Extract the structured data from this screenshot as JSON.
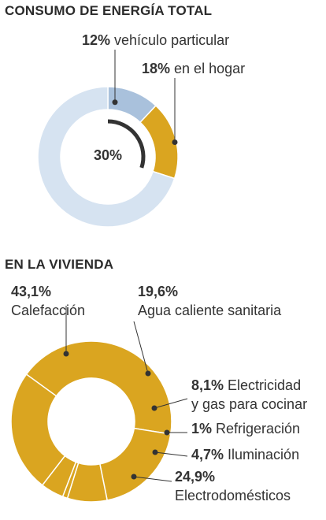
{
  "chart_data": [
    {
      "type": "pie",
      "title": "CONSUMO DE ENERGÍA TOTAL",
      "center_label": "30%",
      "slices": [
        {
          "label": "vehículo particular",
          "pct_label": "12%",
          "value": 12,
          "color": "#a9c1dc"
        },
        {
          "label": "en el hogar",
          "pct_label": "18%",
          "value": 18,
          "color": "#daa520"
        },
        {
          "label": "",
          "pct_label": "",
          "value": 70,
          "color": "#d6e3f1"
        }
      ]
    },
    {
      "type": "pie",
      "title": "EN LA VIVIENDA",
      "slices": [
        {
          "pct_label": "43,1%",
          "lines": [
            "Calefacción"
          ],
          "value": 43.1,
          "color": "#daa520"
        },
        {
          "pct_label": "19,6%",
          "lines": [
            "Agua caliente sanitaria"
          ],
          "value": 19.6,
          "color": "#daa520"
        },
        {
          "pct_label": "8,1%",
          "lines": [
            "Electricidad",
            "y gas para cocinar"
          ],
          "value": 8.1,
          "color": "#daa520"
        },
        {
          "pct_label": "1%",
          "lines": [
            "Refrigeración"
          ],
          "value": 1,
          "color": "#daa520"
        },
        {
          "pct_label": "4,7%",
          "lines": [
            "Iluminación"
          ],
          "value": 4.7,
          "color": "#daa520"
        },
        {
          "pct_label": "24,9%",
          "lines": [
            "Electrodomésticos"
          ],
          "value": 24.9,
          "color": "#daa520"
        }
      ]
    }
  ]
}
